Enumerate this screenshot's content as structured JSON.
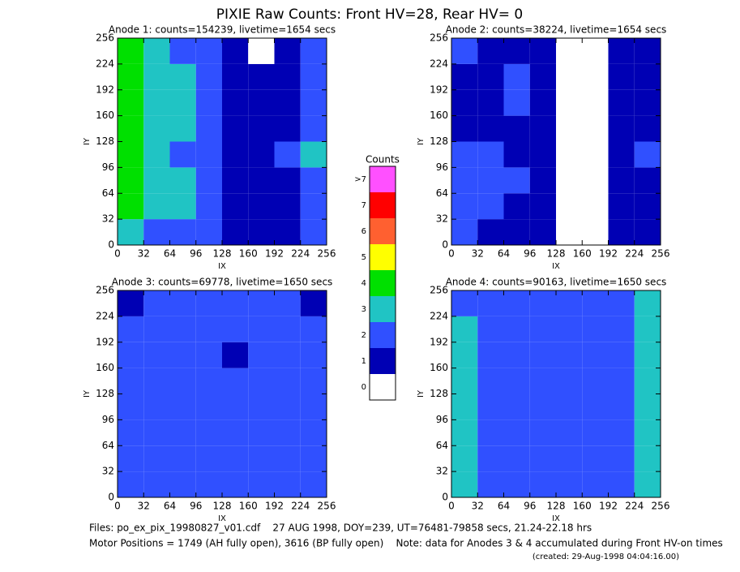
{
  "title": "PIXIE Raw Counts:  Front HV=28, Rear HV= 0",
  "chart_data": [
    {
      "type": "heatmap",
      "title": "Anode 1: counts=154239, livetime=1654 secs",
      "xlabel": "IX",
      "ylabel": "IY",
      "xlim": [
        0,
        256
      ],
      "ylim": [
        0,
        256
      ],
      "xticks": [
        0,
        32,
        64,
        96,
        128,
        160,
        192,
        224,
        256
      ],
      "yticks": [
        0,
        32,
        64,
        96,
        128,
        160,
        192,
        224,
        256
      ],
      "z": [
        [
          3,
          2,
          2,
          2,
          1,
          1,
          1,
          2
        ],
        [
          4,
          3,
          3,
          2,
          1,
          1,
          1,
          2
        ],
        [
          4,
          3,
          3,
          2,
          1,
          1,
          1,
          2
        ],
        [
          4,
          3,
          2,
          2,
          1,
          1,
          2,
          3
        ],
        [
          4,
          3,
          3,
          2,
          1,
          1,
          1,
          2
        ],
        [
          4,
          3,
          3,
          2,
          1,
          1,
          1,
          2
        ],
        [
          4,
          3,
          3,
          2,
          1,
          1,
          1,
          2
        ],
        [
          4,
          3,
          2,
          2,
          1,
          0,
          1,
          2
        ]
      ]
    },
    {
      "type": "heatmap",
      "title": "Anode 2: counts=38224, livetime=1654 secs",
      "xlabel": "IX",
      "ylabel": "IY",
      "xlim": [
        0,
        256
      ],
      "ylim": [
        0,
        256
      ],
      "xticks": [
        0,
        32,
        64,
        96,
        128,
        160,
        192,
        224,
        256
      ],
      "yticks": [
        0,
        32,
        64,
        96,
        128,
        160,
        192,
        224,
        256
      ],
      "z": [
        [
          2,
          1,
          1,
          1,
          0,
          0,
          1,
          1
        ],
        [
          2,
          2,
          1,
          1,
          0,
          0,
          1,
          1
        ],
        [
          2,
          2,
          2,
          1,
          0,
          0,
          1,
          1
        ],
        [
          2,
          2,
          1,
          1,
          0,
          0,
          1,
          2
        ],
        [
          1,
          1,
          1,
          1,
          0,
          0,
          1,
          1
        ],
        [
          1,
          1,
          2,
          1,
          0,
          0,
          1,
          1
        ],
        [
          1,
          1,
          2,
          1,
          0,
          0,
          1,
          1
        ],
        [
          2,
          1,
          1,
          1,
          0,
          0,
          1,
          1
        ]
      ]
    },
    {
      "type": "heatmap",
      "title": "Anode 3: counts=69778, livetime=1650 secs",
      "xlabel": "IX",
      "ylabel": "IY",
      "xlim": [
        0,
        256
      ],
      "ylim": [
        0,
        256
      ],
      "xticks": [
        0,
        32,
        64,
        96,
        128,
        160,
        192,
        224,
        256
      ],
      "yticks": [
        0,
        32,
        64,
        96,
        128,
        160,
        192,
        224,
        256
      ],
      "z": [
        [
          2,
          2,
          2,
          2,
          2,
          2,
          2,
          2
        ],
        [
          2,
          2,
          2,
          2,
          2,
          2,
          2,
          2
        ],
        [
          2,
          2,
          2,
          2,
          2,
          2,
          2,
          2
        ],
        [
          2,
          2,
          2,
          2,
          2,
          2,
          2,
          2
        ],
        [
          2,
          2,
          2,
          2,
          2,
          2,
          2,
          2
        ],
        [
          2,
          2,
          2,
          2,
          1,
          2,
          2,
          2
        ],
        [
          2,
          2,
          2,
          2,
          2,
          2,
          2,
          2
        ],
        [
          1,
          2,
          2,
          2,
          2,
          2,
          2,
          1
        ]
      ]
    },
    {
      "type": "heatmap",
      "title": "Anode 4: counts=90163, livetime=1650 secs",
      "xlabel": "IX",
      "ylabel": "IY",
      "xlim": [
        0,
        256
      ],
      "ylim": [
        0,
        256
      ],
      "xticks": [
        0,
        32,
        64,
        96,
        128,
        160,
        192,
        224,
        256
      ],
      "yticks": [
        0,
        32,
        64,
        96,
        128,
        160,
        192,
        224,
        256
      ],
      "z": [
        [
          3,
          2,
          2,
          2,
          2,
          2,
          2,
          3
        ],
        [
          3,
          2,
          2,
          2,
          2,
          2,
          2,
          3
        ],
        [
          3,
          2,
          2,
          2,
          2,
          2,
          2,
          3
        ],
        [
          3,
          2,
          2,
          2,
          2,
          2,
          2,
          3
        ],
        [
          3,
          2,
          2,
          2,
          2,
          2,
          2,
          3
        ],
        [
          3,
          2,
          2,
          2,
          2,
          2,
          2,
          3
        ],
        [
          3,
          2,
          2,
          2,
          2,
          2,
          2,
          3
        ],
        [
          2,
          2,
          2,
          2,
          2,
          2,
          2,
          3
        ]
      ]
    }
  ],
  "colorbar": {
    "title": "Counts",
    "levels": [
      0,
      1,
      2,
      3,
      4,
      5,
      6,
      7,
      {
        "value": 8,
        "label": ">7"
      }
    ],
    "colors": [
      "#ffffff",
      "#0000b4",
      "#3050ff",
      "#20c4c4",
      "#00e000",
      "#ffff00",
      "#ff6030",
      "#ff0000",
      "#ff50ff"
    ]
  },
  "footer": [
    "Files: po_ex_pix_19980827_v01.cdf    27 AUG 1998, DOY=239, UT=76481-79858 secs, 21.24-22.18 hrs",
    "Motor Positions = 1749 (AH fully open), 3616 (BP fully open)    Note: data for Anodes 3 & 4 accumulated during Front HV-on times",
    "(created: 29-Aug-1998 04:04:16.00)"
  ]
}
